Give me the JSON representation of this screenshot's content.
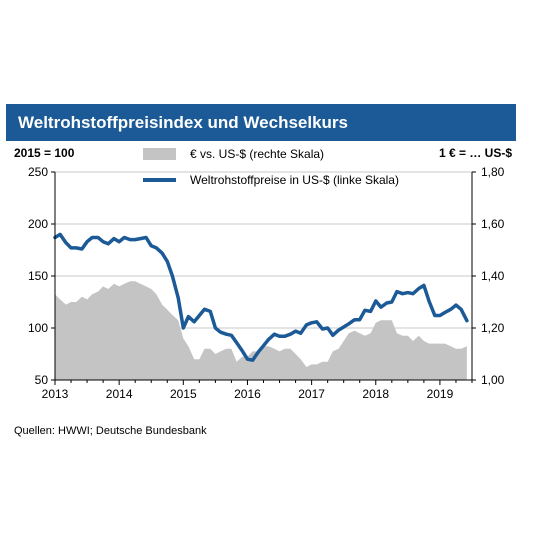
{
  "title": "Weltrohstoffpreisindex und Wechselkurs",
  "left_unit_label": "2015 = 100",
  "right_unit_label": "1 € = … US-$",
  "source": "Quellen: HWWI; Deutsche Bundesbank",
  "colors": {
    "header": "#1b5a96",
    "line": "#1b5a96",
    "area": "#c4c4c4"
  },
  "chart_data": {
    "type": "area",
    "x_ticks": [
      "2013",
      "2014",
      "2015",
      "2016",
      "2017",
      "2018",
      "2019"
    ],
    "x_range": [
      2013.0,
      2019.5
    ],
    "left_axis": {
      "ticks": [
        "50",
        "100",
        "150",
        "200",
        "250"
      ],
      "range": [
        50,
        250
      ]
    },
    "right_axis": {
      "ticks": [
        "1,00",
        "1,20",
        "1,40",
        "1,60",
        "1,80"
      ],
      "range": [
        1.0,
        1.8
      ]
    },
    "legend_position": "top-center",
    "series": [
      {
        "name": "€ vs. US-$ (rechte Skala)",
        "axis": "right",
        "type": "area",
        "data": [
          [
            2013.0,
            1.33
          ],
          [
            2013.08,
            1.31
          ],
          [
            2013.17,
            1.29
          ],
          [
            2013.25,
            1.3
          ],
          [
            2013.33,
            1.3
          ],
          [
            2013.42,
            1.32
          ],
          [
            2013.5,
            1.31
          ],
          [
            2013.58,
            1.33
          ],
          [
            2013.67,
            1.34
          ],
          [
            2013.75,
            1.36
          ],
          [
            2013.83,
            1.35
          ],
          [
            2013.92,
            1.37
          ],
          [
            2014.0,
            1.36
          ],
          [
            2014.08,
            1.37
          ],
          [
            2014.17,
            1.38
          ],
          [
            2014.25,
            1.38
          ],
          [
            2014.33,
            1.37
          ],
          [
            2014.42,
            1.36
          ],
          [
            2014.5,
            1.35
          ],
          [
            2014.58,
            1.33
          ],
          [
            2014.67,
            1.29
          ],
          [
            2014.75,
            1.27
          ],
          [
            2014.83,
            1.25
          ],
          [
            2014.92,
            1.23
          ],
          [
            2015.0,
            1.16
          ],
          [
            2015.08,
            1.13
          ],
          [
            2015.17,
            1.08
          ],
          [
            2015.25,
            1.08
          ],
          [
            2015.33,
            1.12
          ],
          [
            2015.42,
            1.12
          ],
          [
            2015.5,
            1.1
          ],
          [
            2015.58,
            1.11
          ],
          [
            2015.67,
            1.12
          ],
          [
            2015.75,
            1.12
          ],
          [
            2015.83,
            1.07
          ],
          [
            2015.92,
            1.09
          ],
          [
            2016.0,
            1.09
          ],
          [
            2016.08,
            1.11
          ],
          [
            2016.17,
            1.11
          ],
          [
            2016.25,
            1.13
          ],
          [
            2016.33,
            1.13
          ],
          [
            2016.42,
            1.12
          ],
          [
            2016.5,
            1.11
          ],
          [
            2016.58,
            1.12
          ],
          [
            2016.67,
            1.12
          ],
          [
            2016.75,
            1.1
          ],
          [
            2016.83,
            1.08
          ],
          [
            2016.92,
            1.05
          ],
          [
            2017.0,
            1.06
          ],
          [
            2017.08,
            1.06
          ],
          [
            2017.17,
            1.07
          ],
          [
            2017.25,
            1.07
          ],
          [
            2017.33,
            1.11
          ],
          [
            2017.42,
            1.12
          ],
          [
            2017.5,
            1.15
          ],
          [
            2017.58,
            1.18
          ],
          [
            2017.67,
            1.19
          ],
          [
            2017.75,
            1.18
          ],
          [
            2017.83,
            1.17
          ],
          [
            2017.92,
            1.18
          ],
          [
            2018.0,
            1.22
          ],
          [
            2018.08,
            1.23
          ],
          [
            2018.17,
            1.23
          ],
          [
            2018.25,
            1.23
          ],
          [
            2018.33,
            1.18
          ],
          [
            2018.42,
            1.17
          ],
          [
            2018.5,
            1.17
          ],
          [
            2018.58,
            1.15
          ],
          [
            2018.67,
            1.17
          ],
          [
            2018.75,
            1.15
          ],
          [
            2018.83,
            1.14
          ],
          [
            2018.92,
            1.14
          ],
          [
            2019.0,
            1.14
          ],
          [
            2019.08,
            1.14
          ],
          [
            2019.17,
            1.13
          ],
          [
            2019.25,
            1.12
          ],
          [
            2019.33,
            1.12
          ],
          [
            2019.42,
            1.13
          ]
        ]
      },
      {
        "name": "Weltrohstoffpreise in US-$ (linke Skala)",
        "axis": "left",
        "type": "line",
        "data": [
          [
            2013.0,
            187
          ],
          [
            2013.08,
            190
          ],
          [
            2013.17,
            182
          ],
          [
            2013.25,
            177
          ],
          [
            2013.33,
            177
          ],
          [
            2013.42,
            176
          ],
          [
            2013.5,
            183
          ],
          [
            2013.58,
            187
          ],
          [
            2013.67,
            187
          ],
          [
            2013.75,
            183
          ],
          [
            2013.83,
            181
          ],
          [
            2013.92,
            186
          ],
          [
            2014.0,
            183
          ],
          [
            2014.08,
            187
          ],
          [
            2014.17,
            185
          ],
          [
            2014.25,
            185
          ],
          [
            2014.33,
            186
          ],
          [
            2014.42,
            187
          ],
          [
            2014.5,
            179
          ],
          [
            2014.58,
            177
          ],
          [
            2014.67,
            172
          ],
          [
            2014.75,
            164
          ],
          [
            2014.83,
            150
          ],
          [
            2014.92,
            129
          ],
          [
            2015.0,
            100
          ],
          [
            2015.08,
            111
          ],
          [
            2015.17,
            106
          ],
          [
            2015.25,
            112
          ],
          [
            2015.33,
            118
          ],
          [
            2015.42,
            116
          ],
          [
            2015.5,
            100
          ],
          [
            2015.58,
            96
          ],
          [
            2015.67,
            94
          ],
          [
            2015.75,
            93
          ],
          [
            2015.83,
            86
          ],
          [
            2015.92,
            78
          ],
          [
            2016.0,
            70
          ],
          [
            2016.08,
            69
          ],
          [
            2016.17,
            77
          ],
          [
            2016.25,
            83
          ],
          [
            2016.33,
            89
          ],
          [
            2016.42,
            94
          ],
          [
            2016.5,
            92
          ],
          [
            2016.58,
            92
          ],
          [
            2016.67,
            94
          ],
          [
            2016.75,
            97
          ],
          [
            2016.83,
            95
          ],
          [
            2016.92,
            103
          ],
          [
            2017.0,
            105
          ],
          [
            2017.08,
            106
          ],
          [
            2017.17,
            99
          ],
          [
            2017.25,
            100
          ],
          [
            2017.33,
            93
          ],
          [
            2017.42,
            98
          ],
          [
            2017.5,
            101
          ],
          [
            2017.58,
            104
          ],
          [
            2017.67,
            108
          ],
          [
            2017.75,
            108
          ],
          [
            2017.83,
            117
          ],
          [
            2017.92,
            116
          ],
          [
            2018.0,
            126
          ],
          [
            2018.08,
            120
          ],
          [
            2018.17,
            124
          ],
          [
            2018.25,
            125
          ],
          [
            2018.33,
            135
          ],
          [
            2018.42,
            133
          ],
          [
            2018.5,
            134
          ],
          [
            2018.58,
            133
          ],
          [
            2018.67,
            138
          ],
          [
            2018.75,
            141
          ],
          [
            2018.83,
            126
          ],
          [
            2018.92,
            112
          ],
          [
            2019.0,
            112
          ],
          [
            2019.08,
            115
          ],
          [
            2019.17,
            118
          ],
          [
            2019.25,
            122
          ],
          [
            2019.33,
            118
          ],
          [
            2019.42,
            107
          ]
        ]
      }
    ]
  }
}
